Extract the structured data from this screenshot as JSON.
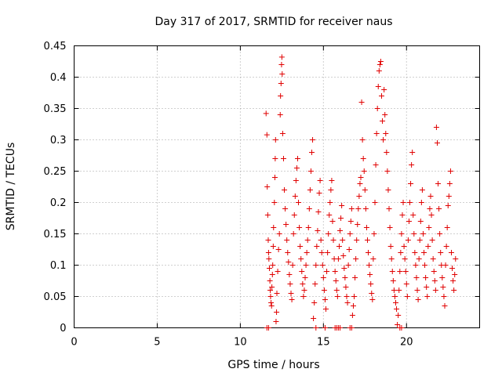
{
  "chart_data": {
    "type": "scatter",
    "title": "Day 317 of 2017, SRMTID for receiver naus",
    "xlabel": "GPS time / hours",
    "ylabel": "SRMTID / TECUs",
    "xlim": [
      0,
      24.4
    ],
    "ylim": [
      0,
      0.45
    ],
    "x_ticks": [
      0,
      5,
      10,
      15,
      20
    ],
    "x_tick_labels": [
      "0",
      "5",
      "10",
      "15",
      "20"
    ],
    "y_ticks": [
      0,
      0.05,
      0.1,
      0.15,
      0.2,
      0.25,
      0.3,
      0.35,
      0.4,
      0.45
    ],
    "y_tick_labels": [
      "0",
      "0.05",
      "0.1",
      "0.15",
      "0.2",
      "0.25",
      "0.3",
      "0.35",
      "0.4",
      "0.45"
    ],
    "grid": true,
    "marker": "+",
    "marker_color": "#e00000",
    "series": [
      {
        "values_xy": [
          [
            11.55,
            0.342
          ],
          [
            11.6,
            0.308
          ],
          [
            11.62,
            0.225
          ],
          [
            11.65,
            0.18
          ],
          [
            11.68,
            0.14
          ],
          [
            11.7,
            0.12
          ],
          [
            11.72,
            0.11
          ],
          [
            11.75,
            0.095
          ],
          [
            11.78,
            0.075
          ],
          [
            11.8,
            0.06
          ],
          [
            11.82,
            0.05
          ],
          [
            11.85,
            0.04
          ],
          [
            11.88,
            0.035
          ],
          [
            11.9,
            0.065
          ],
          [
            11.93,
            0.085
          ],
          [
            11.95,
            0.1
          ],
          [
            11.98,
            0.13
          ],
          [
            12.0,
            0.16
          ],
          [
            12.05,
            0.2
          ],
          [
            12.08,
            0.24
          ],
          [
            12.1,
            0.27
          ],
          [
            12.12,
            0.3
          ],
          [
            12.15,
            0.01
          ],
          [
            12.18,
            0.025
          ],
          [
            12.2,
            0.055
          ],
          [
            12.25,
            0.09
          ],
          [
            12.3,
            0.125
          ],
          [
            12.35,
            0.15
          ],
          [
            12.4,
            0.34
          ],
          [
            12.42,
            0.37
          ],
          [
            12.45,
            0.39
          ],
          [
            12.48,
            0.42
          ],
          [
            12.5,
            0.432
          ],
          [
            12.52,
            0.405
          ],
          [
            12.55,
            0.31
          ],
          [
            12.6,
            0.27
          ],
          [
            12.65,
            0.22
          ],
          [
            12.7,
            0.19
          ],
          [
            12.75,
            0.165
          ],
          [
            12.8,
            0.14
          ],
          [
            12.85,
            0.12
          ],
          [
            12.9,
            0.105
          ],
          [
            12.95,
            0.085
          ],
          [
            13.0,
            0.07
          ],
          [
            13.05,
            0.055
          ],
          [
            13.1,
            0.045
          ],
          [
            13.15,
            0.1
          ],
          [
            13.2,
            0.15
          ],
          [
            13.25,
            0.18
          ],
          [
            13.3,
            0.21
          ],
          [
            13.35,
            0.235
          ],
          [
            13.4,
            0.255
          ],
          [
            13.45,
            0.27
          ],
          [
            13.5,
            0.2
          ],
          [
            13.55,
            0.16
          ],
          [
            13.6,
            0.13
          ],
          [
            13.65,
            0.11
          ],
          [
            13.7,
            0.09
          ],
          [
            13.75,
            0.07
          ],
          [
            13.8,
            0.05
          ],
          [
            13.85,
            0.06
          ],
          [
            13.9,
            0.08
          ],
          [
            13.95,
            0.1
          ],
          [
            14.0,
            0.12
          ],
          [
            14.05,
            0.14
          ],
          [
            14.1,
            0.16
          ],
          [
            14.15,
            0.19
          ],
          [
            14.2,
            0.22
          ],
          [
            14.25,
            0.25
          ],
          [
            14.3,
            0.28
          ],
          [
            14.35,
            0.3
          ],
          [
            14.4,
            0.015
          ],
          [
            14.45,
            0.04
          ],
          [
            14.5,
            0.07
          ],
          [
            14.55,
            0.1
          ],
          [
            14.6,
            0.13
          ],
          [
            14.65,
            0.155
          ],
          [
            14.7,
            0.185
          ],
          [
            14.75,
            0.215
          ],
          [
            14.8,
            0.235
          ],
          [
            14.85,
            0.14
          ],
          [
            14.9,
            0.12
          ],
          [
            14.95,
            0.1
          ],
          [
            15.0,
            0.08
          ],
          [
            15.05,
            0.06
          ],
          [
            15.1,
            0.045
          ],
          [
            15.15,
            0.03
          ],
          [
            15.2,
            0.09
          ],
          [
            15.25,
            0.12
          ],
          [
            15.3,
            0.15
          ],
          [
            15.35,
            0.18
          ],
          [
            15.4,
            0.2
          ],
          [
            15.45,
            0.22
          ],
          [
            15.5,
            0.235
          ],
          [
            15.55,
            0.17
          ],
          [
            15.6,
            0.14
          ],
          [
            15.65,
            0.11
          ],
          [
            15.7,
            0.09
          ],
          [
            15.75,
            0.075
          ],
          [
            15.8,
            0.06
          ],
          [
            15.85,
            0.05
          ],
          [
            15.9,
            0.11
          ],
          [
            15.95,
            0.13
          ],
          [
            16.0,
            0.155
          ],
          [
            16.05,
            0.175
          ],
          [
            16.1,
            0.195
          ],
          [
            16.15,
            0.14
          ],
          [
            16.2,
            0.115
          ],
          [
            16.25,
            0.095
          ],
          [
            16.3,
            0.08
          ],
          [
            16.35,
            0.065
          ],
          [
            16.4,
            0.05
          ],
          [
            16.45,
            0.04
          ],
          [
            16.5,
            0.1
          ],
          [
            16.55,
            0.125
          ],
          [
            16.6,
            0.15
          ],
          [
            16.65,
            0.17
          ],
          [
            16.7,
            0.19
          ],
          [
            16.75,
            0.02
          ],
          [
            16.8,
            0.035
          ],
          [
            16.85,
            0.05
          ],
          [
            16.9,
            0.08
          ],
          [
            16.95,
            0.11
          ],
          [
            17.0,
            0.14
          ],
          [
            17.05,
            0.165
          ],
          [
            17.1,
            0.19
          ],
          [
            17.15,
            0.21
          ],
          [
            17.2,
            0.23
          ],
          [
            17.25,
            0.24
          ],
          [
            17.3,
            0.36
          ],
          [
            17.35,
            0.3
          ],
          [
            17.4,
            0.27
          ],
          [
            17.45,
            0.25
          ],
          [
            17.5,
            0.22
          ],
          [
            17.55,
            0.19
          ],
          [
            17.6,
            0.16
          ],
          [
            17.65,
            0.14
          ],
          [
            17.7,
            0.12
          ],
          [
            17.75,
            0.1
          ],
          [
            17.8,
            0.085
          ],
          [
            17.85,
            0.07
          ],
          [
            17.9,
            0.055
          ],
          [
            17.95,
            0.045
          ],
          [
            18.0,
            0.11
          ],
          [
            18.05,
            0.15
          ],
          [
            18.1,
            0.2
          ],
          [
            18.15,
            0.26
          ],
          [
            18.2,
            0.31
          ],
          [
            18.25,
            0.35
          ],
          [
            18.3,
            0.385
          ],
          [
            18.35,
            0.41
          ],
          [
            18.4,
            0.42
          ],
          [
            18.45,
            0.425
          ],
          [
            18.5,
            0.37
          ],
          [
            18.55,
            0.33
          ],
          [
            18.6,
            0.3
          ],
          [
            18.65,
            0.38
          ],
          [
            18.7,
            0.34
          ],
          [
            18.75,
            0.31
          ],
          [
            18.8,
            0.28
          ],
          [
            18.85,
            0.25
          ],
          [
            18.9,
            0.22
          ],
          [
            18.95,
            0.19
          ],
          [
            19.0,
            0.16
          ],
          [
            19.05,
            0.13
          ],
          [
            19.1,
            0.11
          ],
          [
            19.15,
            0.09
          ],
          [
            19.2,
            0.075
          ],
          [
            19.25,
            0.06
          ],
          [
            19.3,
            0.05
          ],
          [
            19.35,
            0.04
          ],
          [
            19.4,
            0.03
          ],
          [
            19.45,
            0.005
          ],
          [
            19.5,
            0.02
          ],
          [
            19.55,
            0.06
          ],
          [
            19.6,
            0.09
          ],
          [
            19.65,
            0.12
          ],
          [
            19.7,
            0.15
          ],
          [
            19.75,
            0.18
          ],
          [
            19.8,
            0.2
          ],
          [
            19.85,
            0.13
          ],
          [
            19.9,
            0.11
          ],
          [
            19.95,
            0.09
          ],
          [
            20.0,
            0.07
          ],
          [
            20.05,
            0.05
          ],
          [
            20.1,
            0.14
          ],
          [
            20.15,
            0.17
          ],
          [
            20.2,
            0.2
          ],
          [
            20.25,
            0.23
          ],
          [
            20.3,
            0.26
          ],
          [
            20.35,
            0.28
          ],
          [
            20.4,
            0.18
          ],
          [
            20.45,
            0.15
          ],
          [
            20.5,
            0.12
          ],
          [
            20.55,
            0.1
          ],
          [
            20.6,
            0.08
          ],
          [
            20.65,
            0.06
          ],
          [
            20.7,
            0.045
          ],
          [
            20.75,
            0.11
          ],
          [
            20.8,
            0.14
          ],
          [
            20.85,
            0.17
          ],
          [
            20.9,
            0.2
          ],
          [
            20.95,
            0.22
          ],
          [
            21.0,
            0.15
          ],
          [
            21.05,
            0.12
          ],
          [
            21.1,
            0.1
          ],
          [
            21.15,
            0.08
          ],
          [
            21.2,
            0.065
          ],
          [
            21.25,
            0.05
          ],
          [
            21.3,
            0.13
          ],
          [
            21.35,
            0.16
          ],
          [
            21.4,
            0.19
          ],
          [
            21.45,
            0.21
          ],
          [
            21.5,
            0.18
          ],
          [
            21.55,
            0.14
          ],
          [
            21.6,
            0.11
          ],
          [
            21.65,
            0.09
          ],
          [
            21.7,
            0.075
          ],
          [
            21.75,
            0.06
          ],
          [
            21.8,
            0.32
          ],
          [
            21.85,
            0.295
          ],
          [
            21.9,
            0.23
          ],
          [
            21.95,
            0.19
          ],
          [
            22.0,
            0.15
          ],
          [
            22.05,
            0.12
          ],
          [
            22.1,
            0.1
          ],
          [
            22.15,
            0.08
          ],
          [
            22.2,
            0.065
          ],
          [
            22.25,
            0.05
          ],
          [
            22.3,
            0.035
          ],
          [
            22.35,
            0.1
          ],
          [
            22.4,
            0.13
          ],
          [
            22.45,
            0.16
          ],
          [
            22.5,
            0.195
          ],
          [
            22.55,
            0.21
          ],
          [
            22.6,
            0.23
          ],
          [
            22.65,
            0.25
          ],
          [
            22.7,
            0.12
          ],
          [
            22.75,
            0.095
          ],
          [
            22.8,
            0.075
          ],
          [
            22.85,
            0.06
          ],
          [
            22.9,
            0.085
          ],
          [
            22.95,
            0.11
          ]
        ]
      },
      {
        "values_xy": [
          [
            11.6,
            0.0
          ],
          [
            11.7,
            0.0
          ],
          [
            14.55,
            0.0
          ],
          [
            15.1,
            0.0
          ],
          [
            15.7,
            0.0
          ],
          [
            15.8,
            0.0
          ],
          [
            15.9,
            0.0
          ],
          [
            16.0,
            0.0
          ],
          [
            16.6,
            0.0
          ],
          [
            16.7,
            0.0
          ],
          [
            19.6,
            0.0
          ],
          [
            19.7,
            0.0
          ]
        ]
      }
    ]
  }
}
